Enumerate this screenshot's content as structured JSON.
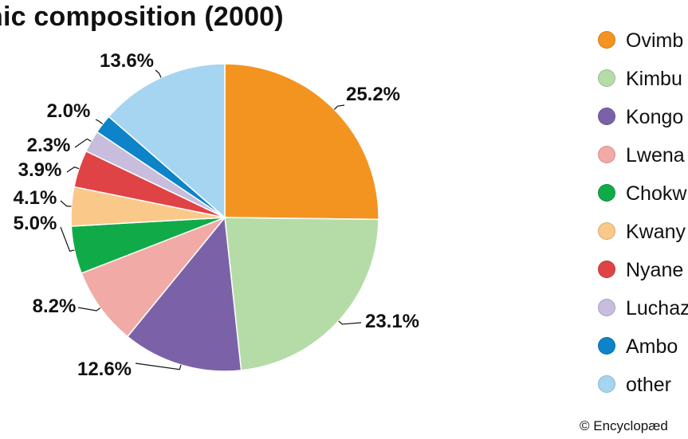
{
  "page": {
    "title": "nic composition (2000)",
    "credit": "© Encyclopæd"
  },
  "chart_data": {
    "type": "pie",
    "title": "nic composition (2000)",
    "start_angle_deg": 0,
    "direction": "clockwise",
    "slices": [
      {
        "name": "Ovimb",
        "value": 25.2,
        "label": "25.2%",
        "color": "#f39421"
      },
      {
        "name": "Kimbu",
        "value": 23.1,
        "label": "23.1%",
        "color": "#b5dca7"
      },
      {
        "name": "Kongo",
        "value": 12.6,
        "label": "12.6%",
        "color": "#7b62a8"
      },
      {
        "name": "Lwena",
        "value": 8.2,
        "label": "8.2%",
        "color": "#f2aaa6"
      },
      {
        "name": "Chokw",
        "value": 5.0,
        "label": "5.0%",
        "color": "#10ab48"
      },
      {
        "name": "Kwany",
        "value": 4.1,
        "label": "4.1%",
        "color": "#fac989"
      },
      {
        "name": "Nyane",
        "value": 3.9,
        "label": "3.9%",
        "color": "#e04346"
      },
      {
        "name": "Luchaz",
        "value": 2.3,
        "label": "2.3%",
        "color": "#c8bddd"
      },
      {
        "name": "Ambo",
        "value": 2.0,
        "label": "2.0%",
        "color": "#0d83c9"
      },
      {
        "name": "other",
        "value": 13.6,
        "label": "13.6%",
        "color": "#a6d5f1"
      }
    ]
  }
}
